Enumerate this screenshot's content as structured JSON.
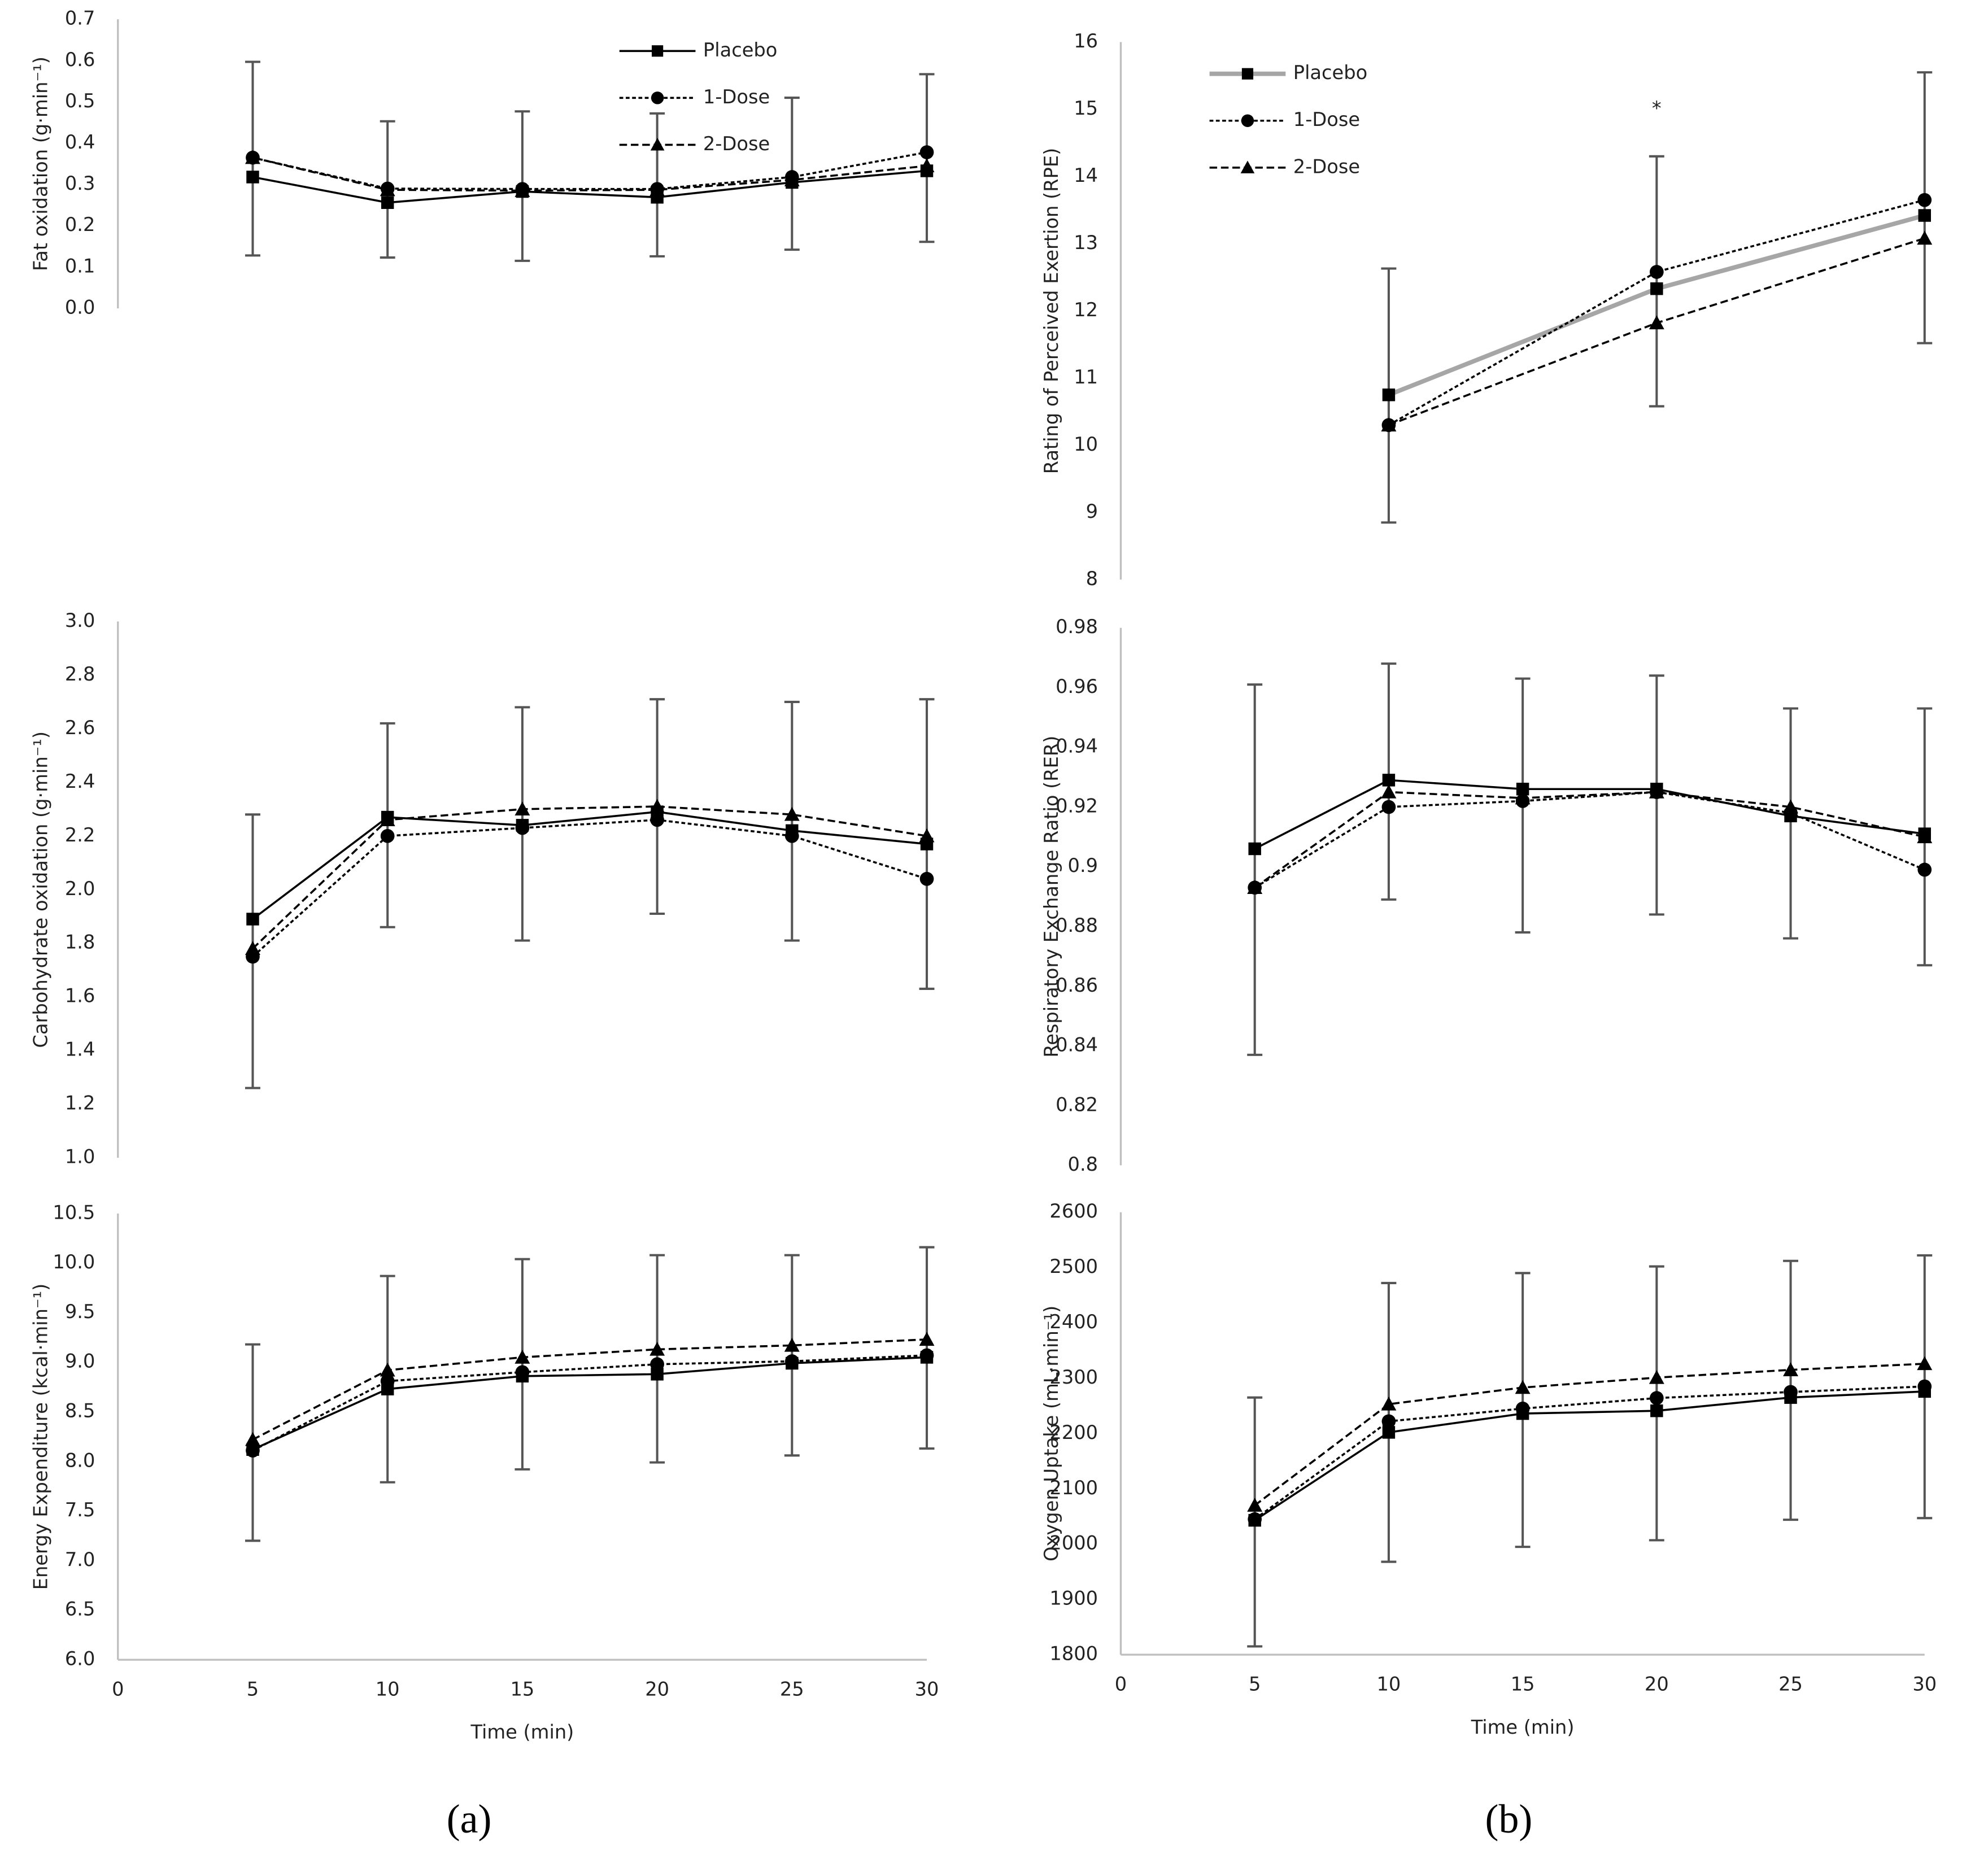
{
  "panel_labels": [
    "(a)",
    "(b)"
  ],
  "chart_data": [
    {
      "type": "line",
      "ylabel": "Fat oxidation (g·min⁻¹)",
      "x": [
        5,
        10,
        15,
        20,
        25,
        30
      ],
      "xlim": [
        0,
        30
      ],
      "ylim": [
        0,
        0.7
      ],
      "yticks": [
        {
          "value": 0,
          "label": "0.0"
        },
        0.1,
        0.2,
        0.3,
        0.4,
        0.5,
        0.6,
        0.7
      ],
      "legend": "upper center",
      "series": [
        {
          "name": "Placebo",
          "color": "#000000",
          "line_style": "solid",
          "marker": "square",
          "values": [
            0.318,
            0.256,
            0.283,
            0.269,
            0.305,
            0.333
          ]
        },
        {
          "name": "1-Dose",
          "color": "#000000",
          "line_style": "dotted",
          "marker": "circle",
          "values": [
            0.365,
            0.29,
            0.289,
            0.289,
            0.318,
            0.378
          ]
        },
        {
          "name": "2-Dose",
          "color": "#000000",
          "line_style": "dashed",
          "marker": "triangle",
          "values": [
            0.365,
            0.287,
            0.285,
            0.287,
            0.311,
            0.345
          ]
        }
      ],
      "error_high": [
        0.597,
        0.453,
        0.477,
        0.472,
        0.51,
        0.567
      ],
      "error_low": [
        0.128,
        0.123,
        0.115,
        0.126,
        0.142,
        0.161
      ]
    },
    {
      "type": "line",
      "ylabel": "Rating of Perceived Exertion (RPE)",
      "x": [
        10,
        20,
        30
      ],
      "xlim": [
        0,
        30
      ],
      "ylim": [
        8,
        16
      ],
      "yticks": [
        8,
        9,
        10,
        11,
        12,
        13,
        14,
        15,
        16
      ],
      "legend": "upper left",
      "series": [
        {
          "name": "Placebo",
          "color": "#a6a6a6",
          "line_style": "thick",
          "marker": "square",
          "values": [
            10.75,
            12.33,
            13.42
          ]
        },
        {
          "name": "1-Dose",
          "color": "#000000",
          "line_style": "dotted",
          "marker": "circle",
          "values": [
            10.3,
            12.58,
            13.65
          ]
        },
        {
          "name": "2-Dose",
          "color": "#000000",
          "line_style": "dashed",
          "marker": "triangle",
          "values": [
            10.3,
            11.82,
            13.08
          ]
        }
      ],
      "error_high": [
        12.63,
        14.3,
        15.55
      ],
      "error_low": [
        8.85,
        10.58,
        11.52
      ],
      "annotations": [
        {
          "text": "*",
          "x": 20,
          "y": 15
        }
      ]
    },
    {
      "type": "line",
      "ylabel": "Carbohydrate oxidation (g·min⁻¹)",
      "x": [
        5,
        10,
        15,
        20,
        25,
        30
      ],
      "xlim": [
        0,
        30
      ],
      "ylim": [
        1,
        3
      ],
      "yticks": [
        {
          "value": 1,
          "label": "1.0"
        },
        1.2,
        1.4,
        1.6,
        1.8,
        {
          "value": 2,
          "label": "2.0"
        },
        2.2,
        2.4,
        2.6,
        2.8,
        {
          "value": 3,
          "label": "3.0"
        }
      ],
      "series": [
        {
          "color": "#000000",
          "line_style": "solid",
          "marker": "square",
          "values": [
            1.89,
            2.27,
            2.24,
            2.29,
            2.22,
            2.17
          ]
        },
        {
          "color": "#000000",
          "line_style": "dotted",
          "marker": "circle",
          "values": [
            1.75,
            2.2,
            2.23,
            2.26,
            2.2,
            2.04
          ]
        },
        {
          "color": "#000000",
          "line_style": "dashed",
          "marker": "triangle",
          "values": [
            1.78,
            2.26,
            2.3,
            2.31,
            2.28,
            2.2
          ]
        }
      ],
      "error_high": [
        2.28,
        2.62,
        2.68,
        2.71,
        2.7,
        2.71
      ],
      "error_low": [
        1.26,
        1.86,
        1.81,
        1.91,
        1.81,
        1.63
      ]
    },
    {
      "type": "line",
      "ylabel": "Respiratory Exchange Ratio (RER)",
      "x": [
        5,
        10,
        15,
        20,
        25,
        30
      ],
      "xlim": [
        0,
        30
      ],
      "ylim": [
        0.8,
        0.98
      ],
      "yticks": [
        0.8,
        0.82,
        0.84,
        0.86,
        0.88,
        0.9,
        0.92,
        0.94,
        0.96,
        0.98
      ],
      "series": [
        {
          "color": "#000000",
          "line_style": "solid",
          "marker": "square",
          "values": [
            0.906,
            0.929,
            0.926,
            0.926,
            0.917,
            0.911
          ]
        },
        {
          "color": "#000000",
          "line_style": "dotted",
          "marker": "circle",
          "values": [
            0.893,
            0.92,
            0.922,
            0.925,
            0.918,
            0.899
          ]
        },
        {
          "color": "#000000",
          "line_style": "dashed",
          "marker": "triangle",
          "values": [
            0.893,
            0.925,
            0.923,
            0.925,
            0.92,
            0.91
          ]
        }
      ],
      "error_high": [
        0.961,
        0.968,
        0.963,
        0.964,
        0.953,
        0.953
      ],
      "error_low": [
        0.837,
        0.889,
        0.878,
        0.884,
        0.876,
        0.867
      ]
    },
    {
      "type": "line",
      "ylabel": "Energy Expenditure (kcal·min⁻¹)",
      "xlabel": "Time (min)",
      "x": [
        5,
        10,
        15,
        20,
        25,
        30
      ],
      "xlim": [
        0,
        30
      ],
      "xticks": [
        0,
        5,
        10,
        15,
        20,
        25,
        30
      ],
      "ylim": [
        6,
        10.5
      ],
      "yticks": [
        {
          "value": 6,
          "label": "6.0"
        },
        6.5,
        {
          "value": 7,
          "label": "7.0"
        },
        7.5,
        {
          "value": 8,
          "label": "8.0"
        },
        8.5,
        {
          "value": 9,
          "label": "9.0"
        },
        9.5,
        {
          "value": 10,
          "label": "10.0"
        },
        10.5
      ],
      "series": [
        {
          "color": "#000000",
          "line_style": "solid",
          "marker": "square",
          "values": [
            8.12,
            8.73,
            8.86,
            8.88,
            8.99,
            9.05
          ]
        },
        {
          "color": "#000000",
          "line_style": "dotted",
          "marker": "circle",
          "values": [
            8.11,
            8.81,
            8.9,
            8.98,
            9.01,
            9.07
          ]
        },
        {
          "color": "#000000",
          "line_style": "dashed",
          "marker": "triangle",
          "values": [
            8.22,
            8.92,
            9.05,
            9.13,
            9.17,
            9.23
          ]
        }
      ],
      "error_high": [
        9.18,
        9.87,
        10.04,
        10.08,
        10.08,
        10.16
      ],
      "error_low": [
        7.2,
        7.79,
        7.92,
        7.99,
        8.06,
        8.13
      ]
    },
    {
      "type": "line",
      "ylabel": "Oxygen Uptake (mL·min⁻¹)",
      "xlabel": "Time (min)",
      "x": [
        5,
        10,
        15,
        20,
        25,
        30
      ],
      "xlim": [
        0,
        30
      ],
      "xticks": [
        0,
        5,
        10,
        15,
        20,
        25,
        30
      ],
      "ylim": [
        1800,
        2600
      ],
      "yticks": [
        1800,
        1900,
        2000,
        2100,
        2200,
        2300,
        2400,
        2500,
        2600
      ],
      "series": [
        {
          "color": "#000000",
          "line_style": "solid",
          "marker": "square",
          "values": [
            2043,
            2202,
            2236,
            2241,
            2265,
            2276
          ]
        },
        {
          "color": "#000000",
          "line_style": "dotted",
          "marker": "circle",
          "values": [
            2045,
            2222,
            2245,
            2264,
            2275,
            2285
          ]
        },
        {
          "color": "#000000",
          "line_style": "dashed",
          "marker": "triangle",
          "values": [
            2070,
            2253,
            2283,
            2301,
            2315,
            2326
          ]
        }
      ],
      "error_high": [
        2265,
        2472,
        2490,
        2502,
        2512,
        2522
      ],
      "error_low": [
        1815,
        1968,
        1995,
        2007,
        2044,
        2047
      ]
    }
  ]
}
